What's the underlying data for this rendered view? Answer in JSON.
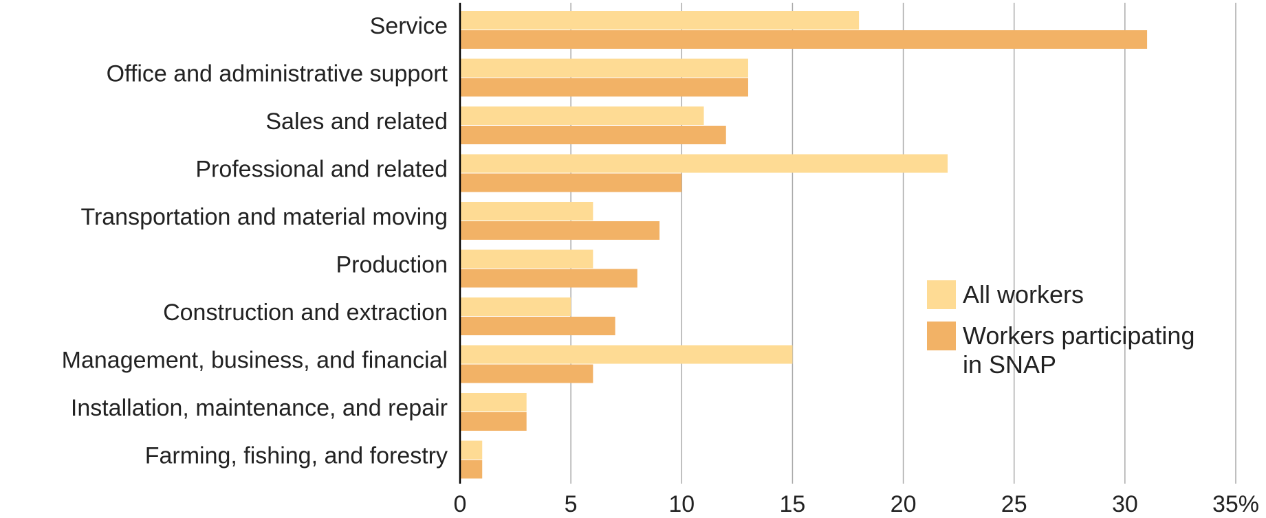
{
  "chart_data": {
    "type": "hbar",
    "categories": [
      "Service",
      "Office and administrative support",
      "Sales and related",
      "Professional and related",
      "Transportation and material moving",
      "Production",
      "Construction and extraction",
      "Management, business, and financial",
      "Installation, maintenance, and repair",
      "Farming, fishing, and forestry"
    ],
    "series": [
      {
        "name": "All workers",
        "color": "#fedb94",
        "values": [
          18,
          13,
          11,
          22,
          6,
          6,
          5,
          15,
          3,
          1
        ]
      },
      {
        "name": "Workers participating in SNAP",
        "color": "#f2b266",
        "values": [
          31,
          13,
          12,
          10,
          9,
          8,
          7,
          6,
          3,
          1
        ]
      }
    ],
    "xlim": [
      0,
      35
    ],
    "xticks": [
      0,
      5,
      10,
      15,
      20,
      25,
      30,
      {
        "value": 35,
        "label": "35%"
      }
    ],
    "grid": true,
    "legend": "right"
  }
}
